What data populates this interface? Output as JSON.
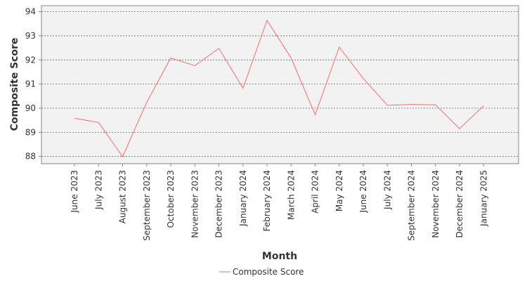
{
  "chart_data": {
    "type": "line",
    "title": "",
    "xlabel": "Month",
    "ylabel": "Composite Score",
    "categories": [
      "June 2023",
      "July 2023",
      "August 2023",
      "September 2023",
      "October 2023",
      "November 2023",
      "December 2023",
      "January 2024",
      "February 2024",
      "March 2024",
      "April 2024",
      "May 2024",
      "June 2024",
      "July 2024",
      "September 2024",
      "November 2024",
      "December 2024",
      "January 2025"
    ],
    "series": [
      {
        "name": "Composite Score",
        "color": "#f26b6b",
        "values": [
          89.58,
          89.41,
          87.99,
          90.24,
          92.08,
          91.76,
          92.48,
          90.83,
          93.64,
          92.08,
          89.73,
          92.53,
          91.23,
          90.12,
          90.15,
          90.14,
          89.15,
          90.1
        ]
      }
    ],
    "ylim": [
      87.7,
      94.25
    ],
    "yticks": [
      88,
      89,
      90,
      91,
      92,
      93,
      94
    ],
    "grid": true,
    "legend_position": "bottom-center",
    "plot_background": "#f2f2f2",
    "gridline_color": "#666666"
  }
}
